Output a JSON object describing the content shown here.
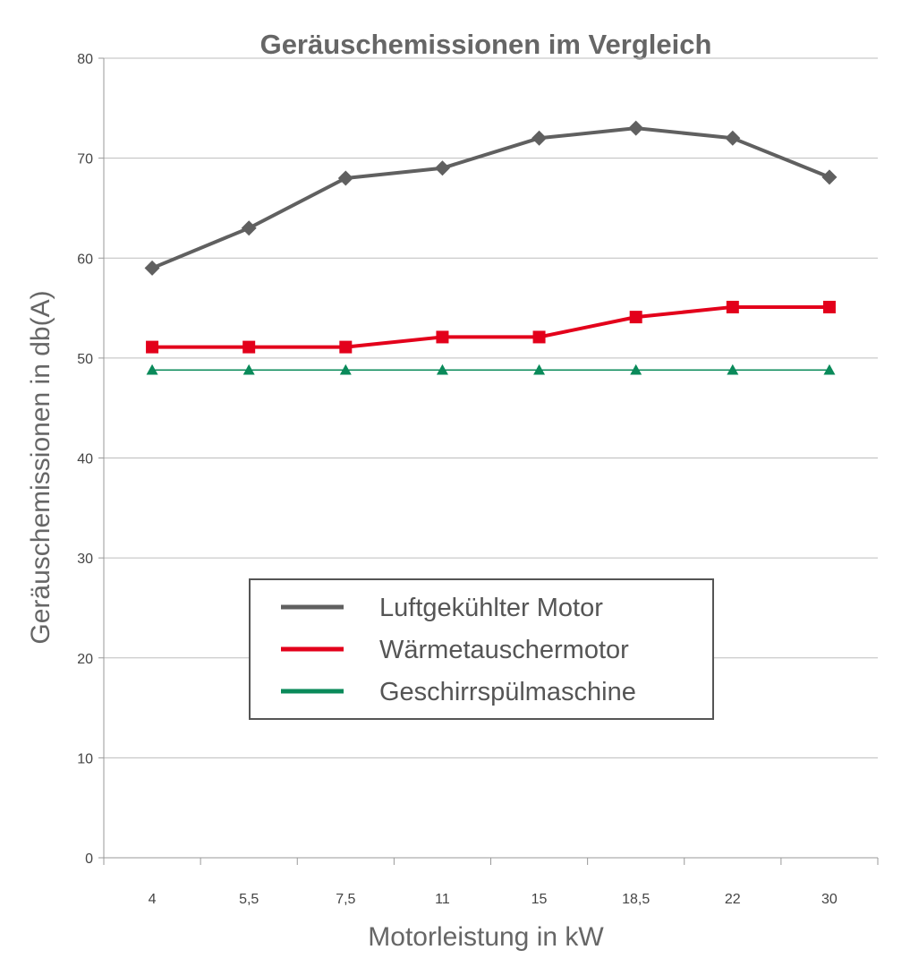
{
  "chart_data": {
    "type": "line",
    "title": "Geräuschemissionen im Vergleich",
    "xlabel": "Motorleistung in kW",
    "ylabel": "Geräuschemissionen in db(A)",
    "categories": [
      "4",
      "5,5",
      "7,5",
      "11",
      "15",
      "18,5",
      "22",
      "30"
    ],
    "ylim": [
      0,
      80
    ],
    "yticks": [
      0,
      10,
      20,
      30,
      40,
      50,
      60,
      70,
      80
    ],
    "grid": true,
    "legend_position": "center",
    "series": [
      {
        "name": "Luftgekühlter Motor",
        "values": [
          59,
          63,
          68,
          69,
          72,
          73,
          72,
          68.1
        ],
        "color": "#606060",
        "marker": "diamond"
      },
      {
        "name": "Wärmetauschermotor",
        "values": [
          51.1,
          51.1,
          51.1,
          52.1,
          52.1,
          54.1,
          55.1,
          55.1
        ],
        "color": "#e3001b",
        "marker": "square"
      },
      {
        "name": "Geschirrspülmaschine",
        "values": [
          48.8,
          48.8,
          48.8,
          48.8,
          48.8,
          48.8,
          48.8,
          48.8
        ],
        "color": "#0a8a5a",
        "marker": "triangle"
      }
    ]
  }
}
